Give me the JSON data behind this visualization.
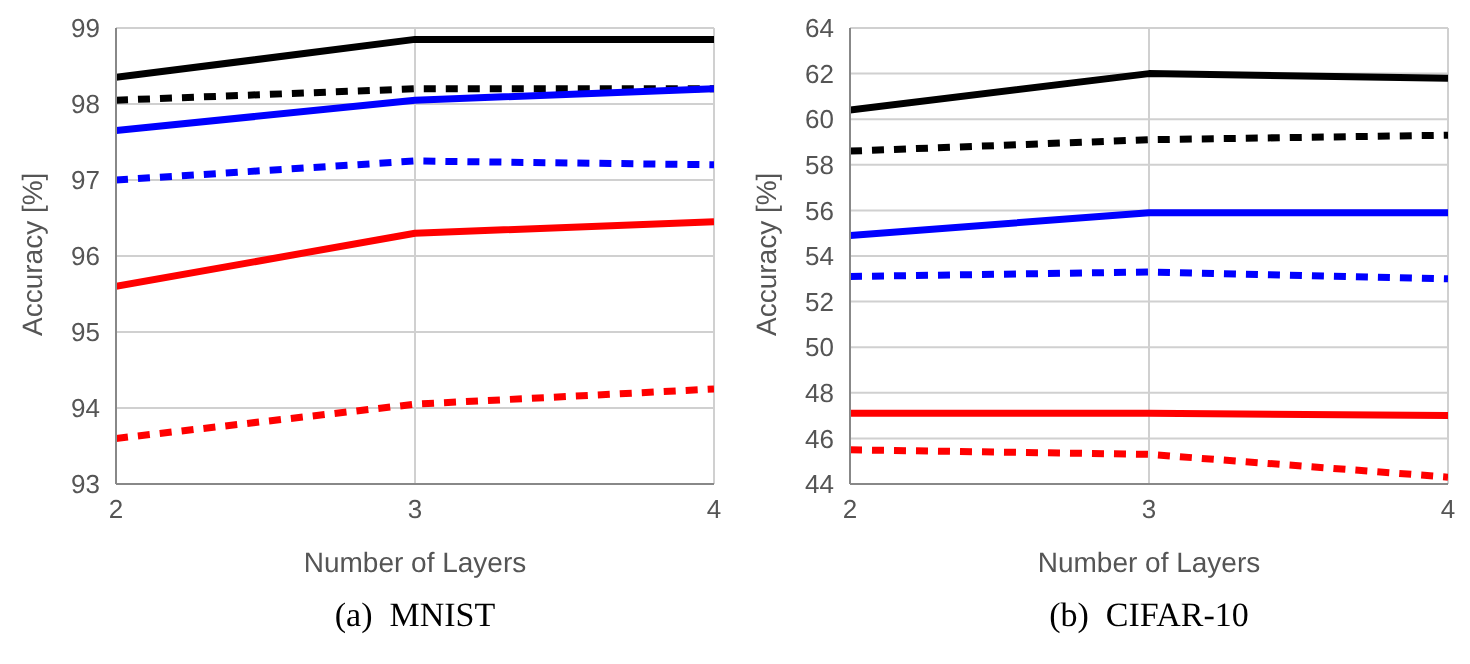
{
  "chart_data": [
    {
      "type": "line",
      "title": "(a)  MNIST",
      "xlabel": "Number of Layers",
      "ylabel": "Accuracy [%]",
      "x": [
        2,
        3,
        4
      ],
      "xlim": [
        2,
        4
      ],
      "xticks": [
        2,
        3,
        4
      ],
      "ylim": [
        93,
        99
      ],
      "yticks": [
        93,
        94,
        95,
        96,
        97,
        98,
        99
      ],
      "grid": true,
      "series": [
        {
          "color": "#000000",
          "line_style": "solid",
          "values": [
            98.35,
            98.85,
            98.85
          ]
        },
        {
          "color": "#000000",
          "line_style": "dashed",
          "values": [
            98.05,
            98.2,
            98.2
          ]
        },
        {
          "color": "#0000ff",
          "line_style": "solid",
          "values": [
            97.65,
            98.05,
            98.2
          ]
        },
        {
          "color": "#0000ff",
          "line_style": "dashed",
          "values": [
            97.0,
            97.25,
            97.2
          ]
        },
        {
          "color": "#ff0000",
          "line_style": "solid",
          "values": [
            95.6,
            96.3,
            96.45
          ]
        },
        {
          "color": "#ff0000",
          "line_style": "dashed",
          "values": [
            93.6,
            94.05,
            94.25
          ]
        }
      ]
    },
    {
      "type": "line",
      "title": "(b)  CIFAR-10",
      "xlabel": "Number of Layers",
      "ylabel": "Accuracy [%]",
      "x": [
        2,
        3,
        4
      ],
      "xlim": [
        2,
        4
      ],
      "xticks": [
        2,
        3,
        4
      ],
      "ylim": [
        44,
        64
      ],
      "yticks": [
        44,
        46,
        48,
        50,
        52,
        54,
        56,
        58,
        60,
        62,
        64
      ],
      "grid": true,
      "series": [
        {
          "color": "#000000",
          "line_style": "solid",
          "values": [
            60.4,
            62.0,
            61.8
          ]
        },
        {
          "color": "#000000",
          "line_style": "dashed",
          "values": [
            58.6,
            59.1,
            59.3
          ]
        },
        {
          "color": "#0000ff",
          "line_style": "solid",
          "values": [
            54.9,
            55.9,
            55.9
          ]
        },
        {
          "color": "#0000ff",
          "line_style": "dashed",
          "values": [
            53.1,
            53.3,
            53.0
          ]
        },
        {
          "color": "#ff0000",
          "line_style": "solid",
          "values": [
            47.1,
            47.1,
            47.0
          ]
        },
        {
          "color": "#ff0000",
          "line_style": "dashed",
          "values": [
            45.5,
            45.3,
            44.3
          ]
        }
      ]
    }
  ]
}
